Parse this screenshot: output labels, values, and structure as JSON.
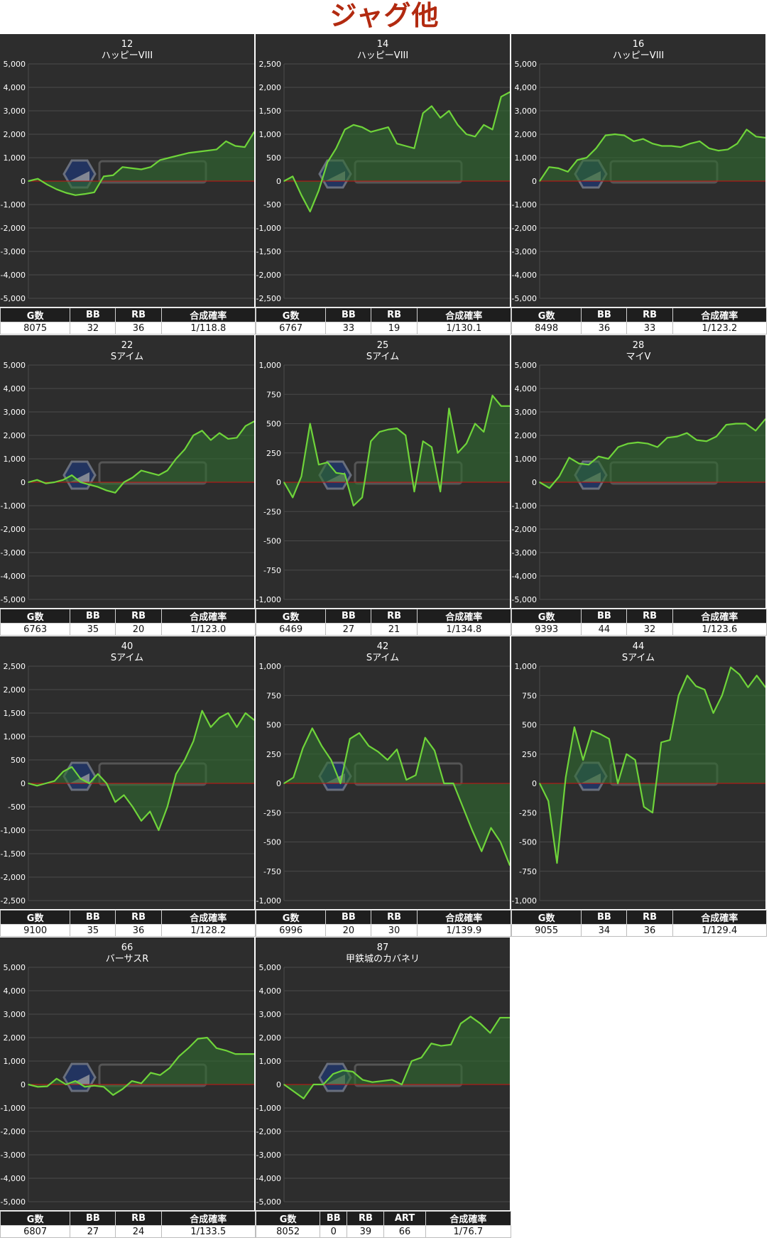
{
  "page_title": "ジャグ他",
  "table_headers": [
    "G数",
    "BB",
    "RB",
    "合成確率"
  ],
  "colors": {
    "background": "#2d2d2d",
    "line": "#6fd43a",
    "fill": "#2f6b2f",
    "zero_line": "#cc1111",
    "title": "#b22a10"
  },
  "watermark": {
    "icon": "hexagon-logo-icon"
  },
  "chart_data": [
    {
      "type": "area",
      "machine_no": "12",
      "machine_name": "ハッピーVIII",
      "ylim": [
        -5000,
        5000
      ],
      "yticks": [
        "5,000",
        "4,000",
        "3,000",
        "2,000",
        "1,000",
        "0",
        "-1,000",
        "-2,000",
        "-3,000",
        "-4,000",
        "-5,000"
      ],
      "values": [
        0,
        100,
        -150,
        -350,
        -500,
        -600,
        -550,
        -480,
        200,
        250,
        600,
        550,
        500,
        600,
        900,
        1000,
        1100,
        1200,
        1250,
        1300,
        1350,
        1700,
        1500,
        1450,
        2100
      ],
      "stats": [
        "8075",
        "32",
        "36",
        "1/118.8"
      ]
    },
    {
      "type": "area",
      "machine_no": "14",
      "machine_name": "ハッピーVIII",
      "ylim": [
        -2500,
        2500
      ],
      "yticks": [
        "2,500",
        "2,000",
        "1,500",
        "1,000",
        "500",
        "0",
        "-500",
        "-1,000",
        "-1,500",
        "-2,000",
        "-2,500"
      ],
      "values": [
        0,
        100,
        -300,
        -650,
        -200,
        400,
        700,
        1100,
        1200,
        1150,
        1050,
        1100,
        1150,
        800,
        750,
        700,
        1450,
        1600,
        1350,
        1500,
        1200,
        1000,
        950,
        1200,
        1100,
        1800,
        1900
      ],
      "stats": [
        "6767",
        "33",
        "19",
        "1/130.1"
      ]
    },
    {
      "type": "area",
      "machine_no": "16",
      "machine_name": "ハッピーVIII",
      "ylim": [
        -5000,
        5000
      ],
      "yticks": [
        "5,000",
        "4,000",
        "3,000",
        "2,000",
        "1,000",
        "0",
        "-1,000",
        "-2,000",
        "-3,000",
        "-4,000",
        "-5,000"
      ],
      "values": [
        0,
        600,
        550,
        400,
        900,
        1000,
        1400,
        1950,
        2000,
        1950,
        1700,
        1800,
        1600,
        1500,
        1500,
        1450,
        1600,
        1700,
        1400,
        1300,
        1350,
        1600,
        2200,
        1900,
        1850
      ],
      "stats": [
        "8498",
        "36",
        "33",
        "1/123.2"
      ]
    },
    {
      "type": "area",
      "machine_no": "22",
      "machine_name": "Sアイム",
      "ylim": [
        -5000,
        5000
      ],
      "yticks": [
        "5,000",
        "4,000",
        "3,000",
        "2,000",
        "1,000",
        "0",
        "-1,000",
        "-2,000",
        "-3,000",
        "-4,000",
        "-5,000"
      ],
      "values": [
        0,
        100,
        -50,
        0,
        100,
        300,
        0,
        -100,
        -200,
        -350,
        -450,
        0,
        200,
        500,
        400,
        300,
        500,
        1000,
        1400,
        2000,
        2200,
        1800,
        2100,
        1850,
        1900,
        2400,
        2600
      ],
      "stats": [
        "6763",
        "35",
        "20",
        "1/123.0"
      ]
    },
    {
      "type": "area",
      "machine_no": "25",
      "machine_name": "Sアイム",
      "ylim": [
        -1000,
        1000
      ],
      "yticks": [
        "1,000",
        "750",
        "500",
        "250",
        "0",
        "-250",
        "-500",
        "-750",
        "-1,000"
      ],
      "values": [
        0,
        -130,
        50,
        500,
        150,
        170,
        80,
        70,
        -200,
        -130,
        350,
        430,
        450,
        460,
        400,
        -80,
        350,
        300,
        -80,
        630,
        250,
        330,
        500,
        430,
        740,
        650,
        650
      ],
      "stats": [
        "6469",
        "27",
        "21",
        "1/134.8"
      ]
    },
    {
      "type": "area",
      "machine_no": "28",
      "machine_name": "マイV",
      "ylim": [
        -5000,
        5000
      ],
      "yticks": [
        "5,000",
        "4,000",
        "3,000",
        "2,000",
        "1,000",
        "0",
        "-1,000",
        "-2,000",
        "-3,000",
        "-4,000",
        "-5,000"
      ],
      "values": [
        0,
        -250,
        250,
        1050,
        800,
        750,
        1100,
        1000,
        1500,
        1650,
        1700,
        1650,
        1500,
        1900,
        1950,
        2100,
        1800,
        1750,
        1950,
        2450,
        2500,
        2500,
        2200,
        2700
      ],
      "stats": [
        "9393",
        "44",
        "32",
        "1/123.6"
      ]
    },
    {
      "type": "area",
      "machine_no": "40",
      "machine_name": "Sアイム",
      "ylim": [
        -2500,
        2500
      ],
      "yticks": [
        "2,500",
        "2,000",
        "1,500",
        "1,000",
        "500",
        "0",
        "-500",
        "-1,000",
        "-1,500",
        "-2,000",
        "-2,500"
      ],
      "values": [
        0,
        -50,
        0,
        50,
        250,
        350,
        100,
        0,
        200,
        0,
        -400,
        -250,
        -500,
        -800,
        -600,
        -1000,
        -500,
        200,
        500,
        900,
        1550,
        1200,
        1400,
        1500,
        1200,
        1500,
        1350
      ],
      "stats": [
        "9100",
        "35",
        "36",
        "1/128.2"
      ]
    },
    {
      "type": "area",
      "machine_no": "42",
      "machine_name": "Sアイム",
      "ylim": [
        -1000,
        1000
      ],
      "yticks": [
        "1,000",
        "750",
        "500",
        "250",
        "0",
        "-250",
        "-500",
        "-750",
        "-1,000"
      ],
      "values": [
        0,
        50,
        300,
        470,
        320,
        200,
        0,
        380,
        430,
        320,
        270,
        200,
        290,
        30,
        70,
        390,
        280,
        0,
        0,
        -200,
        -400,
        -580,
        -380,
        -500,
        -700
      ],
      "stats": [
        "6996",
        "20",
        "30",
        "1/139.9"
      ]
    },
    {
      "type": "area",
      "machine_no": "44",
      "machine_name": "Sアイム",
      "ylim": [
        -1000,
        1000
      ],
      "yticks": [
        "1,000",
        "750",
        "500",
        "250",
        "0",
        "-250",
        "-500",
        "-750",
        "-1,000"
      ],
      "values": [
        0,
        -150,
        -680,
        50,
        480,
        200,
        450,
        420,
        380,
        0,
        250,
        200,
        -200,
        -250,
        350,
        370,
        750,
        920,
        830,
        800,
        600,
        750,
        990,
        930,
        820,
        920,
        820
      ],
      "stats": [
        "9055",
        "34",
        "36",
        "1/129.4"
      ]
    },
    {
      "type": "area",
      "machine_no": "66",
      "machine_name": "バーサスR",
      "ylim": [
        -5000,
        5000
      ],
      "yticks": [
        "5,000",
        "4,000",
        "3,000",
        "2,000",
        "1,000",
        "0",
        "-1,000",
        "-2,000",
        "-3,000",
        "-4,000",
        "-5,000"
      ],
      "values": [
        0,
        -100,
        -80,
        250,
        0,
        150,
        -100,
        -50,
        -100,
        -450,
        -200,
        150,
        50,
        500,
        400,
        700,
        1200,
        1550,
        1950,
        2000,
        1550,
        1450,
        1300,
        1300,
        1300
      ],
      "stats": [
        "6807",
        "27",
        "24",
        "1/133.5"
      ]
    },
    {
      "type": "area",
      "machine_no": "87",
      "machine_name": "甲鉄城のカバネリ",
      "ylim": [
        -5000,
        5000
      ],
      "yticks": [
        "5,000",
        "4,000",
        "3,000",
        "2,000",
        "1,000",
        "0",
        "-1,000",
        "-2,000",
        "-3,000",
        "-4,000",
        "-5,000"
      ],
      "values": [
        0,
        -300,
        -600,
        0,
        0,
        450,
        600,
        550,
        200,
        100,
        150,
        200,
        0,
        1000,
        1150,
        1750,
        1650,
        1700,
        2600,
        2900,
        2600,
        2200,
        2850,
        2850
      ],
      "headers": [
        "G数",
        "BB",
        "RB",
        "ART",
        "合成確率"
      ],
      "stats": [
        "8052",
        "0",
        "39",
        "66",
        "1/76.7"
      ]
    }
  ]
}
